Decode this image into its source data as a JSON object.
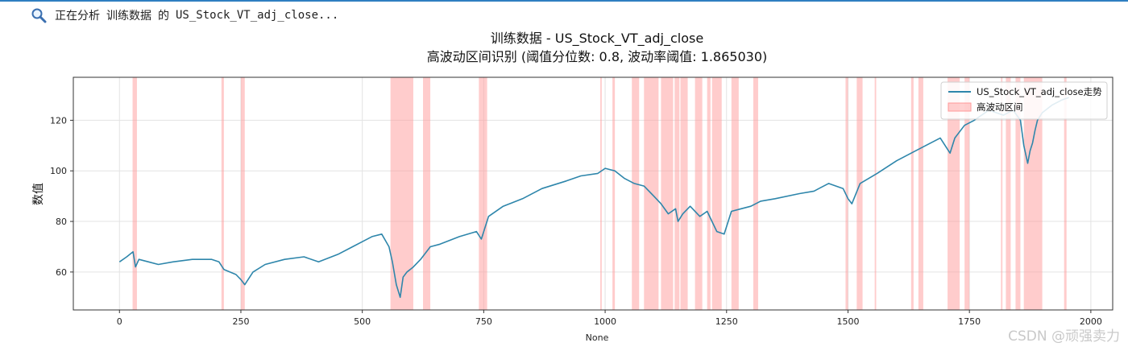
{
  "status": {
    "icon": "search-icon",
    "prefix": "正在分析",
    "dataset": "训练数据",
    "particle": "的",
    "column": "US_Stock_VT_adj_close..."
  },
  "watermark": "CSDN @顽强卖力",
  "chart_data": {
    "type": "line",
    "title": "训练数据 - US_Stock_VT_adj_close",
    "subtitle": "高波动区间识别 (阈值分位数: 0.8, 波动率阈值: 1.865030)",
    "xlabel": "None",
    "ylabel": "数值",
    "xlim": [
      -95,
      2045
    ],
    "ylim": [
      45,
      137
    ],
    "xticks": [
      0,
      250,
      500,
      750,
      1000,
      1250,
      1500,
      1750,
      2000
    ],
    "yticks": [
      60,
      80,
      100,
      120
    ],
    "grid": true,
    "legend_position": "top-right",
    "colors": {
      "line": "#2e86ab",
      "band": "#ff9999"
    },
    "series": [
      {
        "name": "US_Stock_VT_adj_close走势",
        "x": [
          0,
          15,
          28,
          33,
          40,
          60,
          80,
          110,
          150,
          190,
          205,
          215,
          240,
          250,
          258,
          275,
          300,
          340,
          380,
          410,
          450,
          480,
          500,
          520,
          540,
          555,
          562,
          570,
          578,
          584,
          592,
          605,
          620,
          640,
          660,
          700,
          735,
          745,
          760,
          790,
          830,
          870,
          920,
          950,
          985,
          1000,
          1020,
          1040,
          1060,
          1080,
          1100,
          1115,
          1130,
          1145,
          1150,
          1160,
          1175,
          1195,
          1210,
          1220,
          1230,
          1245,
          1260,
          1280,
          1300,
          1320,
          1350,
          1400,
          1430,
          1460,
          1490,
          1500,
          1508,
          1525,
          1560,
          1600,
          1640,
          1660,
          1690,
          1710,
          1720,
          1740,
          1760,
          1790,
          1820,
          1840,
          1855,
          1862,
          1870,
          1875,
          1880,
          1885,
          1890,
          1900,
          1920,
          1940,
          1955
        ],
        "values": [
          64,
          66,
          68,
          62,
          65,
          64,
          63,
          64,
          65,
          65,
          64,
          61,
          59,
          57,
          55,
          60,
          63,
          65,
          66,
          64,
          67,
          70,
          72,
          74,
          75,
          70,
          64,
          55,
          50,
          58,
          60,
          62,
          65,
          70,
          71,
          74,
          76,
          73,
          82,
          86,
          89,
          93,
          96,
          98,
          99,
          101,
          100,
          97,
          95,
          94,
          90,
          87,
          83,
          85,
          80,
          83,
          86,
          82,
          84,
          80,
          76,
          75,
          84,
          85,
          86,
          88,
          89,
          91,
          92,
          95,
          93,
          89,
          87,
          95,
          99,
          104,
          108,
          110,
          113,
          107,
          113,
          118,
          120,
          124,
          122,
          124,
          120,
          110,
          103,
          108,
          111,
          116,
          120,
          123,
          126,
          128,
          129
        ]
      }
    ],
    "bands": {
      "name": "高波动区间",
      "ranges": [
        [
          27,
          36
        ],
        [
          210,
          215
        ],
        [
          250,
          258
        ],
        [
          558,
          605
        ],
        [
          625,
          640
        ],
        [
          740,
          757
        ],
        [
          990,
          993
        ],
        [
          1015,
          1020
        ],
        [
          1055,
          1070
        ],
        [
          1080,
          1110
        ],
        [
          1115,
          1140
        ],
        [
          1143,
          1153
        ],
        [
          1155,
          1170
        ],
        [
          1185,
          1200
        ],
        [
          1210,
          1217
        ],
        [
          1220,
          1240
        ],
        [
          1260,
          1275
        ],
        [
          1305,
          1315
        ],
        [
          1495,
          1500
        ],
        [
          1518,
          1530
        ],
        [
          1555,
          1558
        ],
        [
          1630,
          1635
        ],
        [
          1645,
          1655
        ],
        [
          1705,
          1730
        ],
        [
          1740,
          1750
        ],
        [
          1815,
          1818
        ],
        [
          1825,
          1835
        ],
        [
          1845,
          1855
        ],
        [
          1862,
          1900
        ],
        [
          1945,
          1950
        ]
      ]
    }
  }
}
